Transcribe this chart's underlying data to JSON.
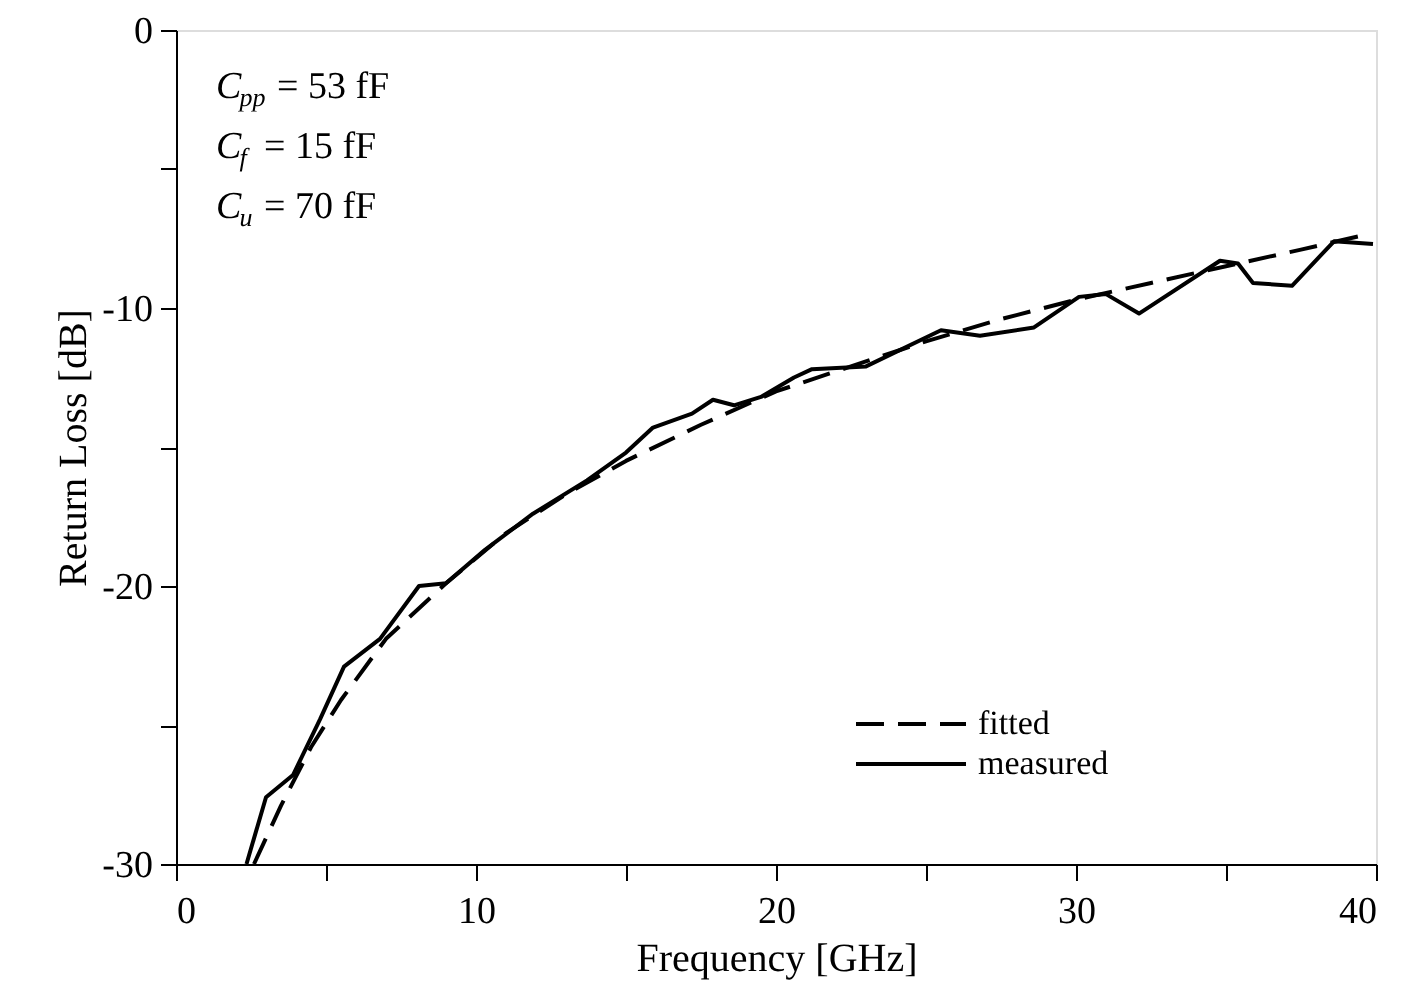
{
  "chart_data": {
    "type": "line",
    "xlabel": "Frequency [GHz]",
    "ylabel": "Return Loss [dB]",
    "xlim": [
      0,
      40
    ],
    "ylim": [
      -30,
      0
    ],
    "xticks": [
      0,
      {
        "value": 5,
        "label": null
      },
      10,
      {
        "value": 15,
        "label": null
      },
      20,
      {
        "value": 25,
        "label": null
      },
      30,
      {
        "value": 35,
        "label": null
      },
      40
    ],
    "yticks": [
      -30,
      {
        "value": -25,
        "label": null
      },
      -20,
      {
        "value": -15,
        "label": null
      },
      -10,
      {
        "value": -5,
        "label": null
      },
      0
    ],
    "grid": false,
    "legend": "bottom right",
    "marker": "none",
    "annotations": [
      "C$_{pp}$ = 53 fF",
      "C$_{f}$ = 15 fF",
      "C$_{u}$ = 70 fF"
    ],
    "series": [
      {
        "name": "fitted",
        "color": "#000000",
        "line_style": "dashed",
        "x": [
          2.6,
          3.5,
          4.5,
          5.5,
          7,
          9,
          11,
          13,
          15,
          17.5,
          20,
          22.5,
          25,
          27.5,
          30,
          32.5,
          35,
          37.5,
          39.5
        ],
        "values": [
          -30,
          -27.9,
          -25.8,
          -24.1,
          -21.9,
          -19.9,
          -18.1,
          -16.7,
          -15.5,
          -14.2,
          -13.0,
          -12.1,
          -11.2,
          -10.4,
          -9.7,
          -9.1,
          -8.5,
          -7.9,
          -7.4
        ]
      },
      {
        "name": "measured",
        "color": "#000000",
        "line_style": "solid",
        "x": [
          2.35,
          3.0,
          3.9,
          4.8,
          5.6,
          6.8,
          8.1,
          9.0,
          10.3,
          11.9,
          13.7,
          15.0,
          15.9,
          17.2,
          17.9,
          18.6,
          19.5,
          20.6,
          21.2,
          23.0,
          25.5,
          26.8,
          28.6,
          30.1,
          31.0,
          32.1,
          34.8,
          35.4,
          35.9,
          37.2,
          38.6,
          39.9
        ],
        "values": [
          -30,
          -27.6,
          -26.8,
          -24.8,
          -22.9,
          -21.9,
          -20.0,
          -19.9,
          -18.7,
          -17.4,
          -16.2,
          -15.2,
          -14.3,
          -13.8,
          -13.3,
          -13.5,
          -13.2,
          -12.5,
          -12.2,
          -12.1,
          -10.8,
          -11.0,
          -10.7,
          -9.6,
          -9.5,
          -10.2,
          -8.3,
          -8.4,
          -9.1,
          -9.2,
          -7.6,
          -7.7
        ]
      }
    ]
  }
}
